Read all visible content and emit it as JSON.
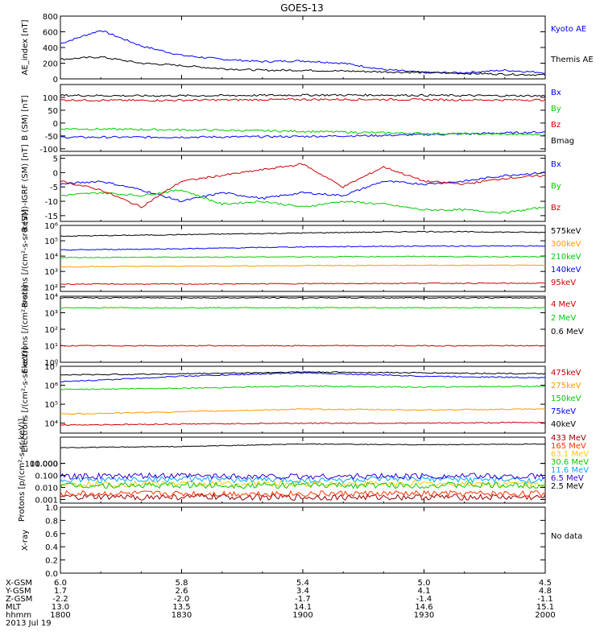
{
  "title": "GOES-13",
  "x_ticks": [
    "1800",
    "1830",
    "1900",
    "1930",
    "2000"
  ],
  "footer": {
    "date": "2013 Jul 19",
    "rows": [
      {
        "label": "X-GSM",
        "values": [
          "6.0",
          "5.8",
          "5.4",
          "5.0",
          "4.5"
        ]
      },
      {
        "label": "Y-GSM",
        "values": [
          "1.7",
          "2.6",
          "3.4",
          "4.1",
          "4.8"
        ]
      },
      {
        "label": "Z-GSM",
        "values": [
          "-2.2",
          "-2.0",
          "-1.7",
          "-1.4",
          "-1.1"
        ]
      },
      {
        "label": "MLT",
        "values": [
          "13.0",
          "13.5",
          "14.1",
          "14.6",
          "15.1"
        ]
      },
      {
        "label": "hhmm",
        "values": [
          "1800",
          "1830",
          "1900",
          "1930",
          "2000"
        ]
      }
    ]
  },
  "chart_data": [
    {
      "type": "line",
      "ylabel": "AE_index [nT]",
      "yscale": "linear",
      "ylim": [
        0,
        800
      ],
      "y_ticks": [
        "0",
        "200",
        "400",
        "600",
        "800"
      ],
      "x": [
        "1800",
        "1810",
        "1820",
        "1830",
        "1840",
        "1850",
        "1900",
        "1910",
        "1920",
        "1930",
        "1940",
        "1950",
        "2000"
      ],
      "series": [
        {
          "name": "Kyoto AE",
          "color": "#0000ff",
          "values": [
            450,
            620,
            420,
            300,
            250,
            220,
            230,
            200,
            120,
            80,
            80,
            110,
            80
          ]
        },
        {
          "name": "Themis AE",
          "color": "#000000",
          "values": [
            250,
            280,
            200,
            170,
            130,
            110,
            110,
            100,
            90,
            80,
            70,
            60,
            50
          ]
        }
      ]
    },
    {
      "type": "line",
      "ylabel": "B (SM) [nT]",
      "yscale": "linear",
      "ylim": [
        -110,
        150
      ],
      "y_ticks": [
        "-100",
        "-50",
        "0",
        "50",
        "100"
      ],
      "x": [
        "1800",
        "1820",
        "1840",
        "1900",
        "1920",
        "1940",
        "2000"
      ],
      "series": [
        {
          "name": "Bx",
          "color": "#0000ff",
          "values": [
            -55,
            -55,
            -54,
            -52,
            -48,
            -42,
            -35
          ]
        },
        {
          "name": "By",
          "color": "#00cc00",
          "values": [
            -22,
            -25,
            -28,
            -32,
            -38,
            -42,
            -45
          ]
        },
        {
          "name": "Bz",
          "color": "#cc0000",
          "values": [
            90,
            88,
            90,
            92,
            92,
            90,
            90
          ]
        },
        {
          "name": "Bmag",
          "color": "#000000",
          "values": [
            108,
            106,
            107,
            109,
            109,
            107,
            106
          ]
        }
      ]
    },
    {
      "type": "line",
      "ylabel": "B (SM)-IGRF (SM) [nT]",
      "yscale": "linear",
      "ylim": [
        -17,
        6
      ],
      "y_ticks": [
        "-15",
        "-10",
        "-5",
        "0",
        "5"
      ],
      "x": [
        "1800",
        "1810",
        "1820",
        "1830",
        "1840",
        "1850",
        "1900",
        "1910",
        "1920",
        "1930",
        "1940",
        "1950",
        "2000"
      ],
      "series": [
        {
          "name": "Bx",
          "color": "#0000ff",
          "values": [
            -4,
            -3,
            -6,
            -10,
            -7,
            -9,
            -7,
            -8,
            -3,
            -4,
            -3,
            -1,
            0
          ]
        },
        {
          "name": "By",
          "color": "#00cc00",
          "values": [
            -8,
            -7,
            -8,
            -6,
            -11,
            -10,
            -12,
            -10,
            -11,
            -13,
            -13,
            -14,
            -12
          ]
        },
        {
          "name": "Bz",
          "color": "#cc0000",
          "values": [
            -3,
            -6,
            -12,
            -3,
            -1,
            1,
            3,
            -5,
            2,
            -3,
            -4,
            -2,
            -1
          ]
        }
      ]
    },
    {
      "type": "line",
      "ylabel": "Protons [/(cm²-s-sr-keV)]",
      "yscale": "log",
      "ylim": [
        50,
        1000000
      ],
      "y_ticks": [
        "10²",
        "10³",
        "10⁴",
        "10⁵",
        "10⁶"
      ],
      "x": [
        "1800",
        "1830",
        "1900",
        "1930",
        "2000"
      ],
      "series": [
        {
          "name": "575keV",
          "color": "#000000",
          "values": [
            200000,
            250000,
            320000,
            400000,
            350000
          ]
        },
        {
          "name": "300keV",
          "color": "#ff9900",
          "values": [
            2000,
            2200,
            2400,
            2500,
            2500
          ]
        },
        {
          "name": "210keV",
          "color": "#00cc00",
          "values": [
            8000,
            8500,
            9000,
            9500,
            9000
          ]
        },
        {
          "name": "140keV",
          "color": "#0000ff",
          "values": [
            25000,
            30000,
            40000,
            45000,
            45000
          ]
        },
        {
          "name": "95keV",
          "color": "#cc0000",
          "values": [
            150,
            150,
            160,
            170,
            170
          ]
        }
      ]
    },
    {
      "type": "line",
      "ylabel": "Electrons [/(cm²-s-sr)]",
      "yscale": "log",
      "ylim": [
        1,
        10000
      ],
      "y_ticks": [
        "10⁰",
        "10¹",
        "10²",
        "10³",
        "10⁴"
      ],
      "x": [
        "1800",
        "1830",
        "1900",
        "1930",
        "2000"
      ],
      "series": [
        {
          "name": "4 MeV",
          "color": "#cc0000",
          "values": [
            10,
            10,
            10,
            10,
            10
          ]
        },
        {
          "name": "2 MeV",
          "color": "#00cc00",
          "values": [
            2000,
            2000,
            2000,
            2000,
            2000
          ]
        },
        {
          "name": "0.6 MeV",
          "color": "#000000",
          "values": [
            8000,
            8000,
            8000,
            8000,
            8000
          ]
        }
      ]
    },
    {
      "type": "line",
      "ylabel": "Electrons [/(cm²-s-sr-keV)]",
      "yscale": "log",
      "ylim": [
        3000,
        10000000
      ],
      "y_ticks": [
        "10⁴",
        "10⁵",
        "10⁶",
        "10⁷"
      ],
      "x": [
        "1800",
        "1830",
        "1900",
        "1930",
        "2000"
      ],
      "series": [
        {
          "name": "475keV",
          "color": "#cc0000",
          "values": [
            8000,
            9000,
            10000,
            10000,
            11000
          ]
        },
        {
          "name": "275keV",
          "color": "#ff9900",
          "values": [
            30000,
            40000,
            55000,
            50000,
            55000
          ]
        },
        {
          "name": "150keV",
          "color": "#00cc00",
          "values": [
            600000,
            700000,
            900000,
            800000,
            900000
          ]
        },
        {
          "name": "75keV",
          "color": "#0000ff",
          "values": [
            1500000,
            3000000,
            4500000,
            3000000,
            2500000
          ]
        },
        {
          "name": "40keV",
          "color": "#000000",
          "values": [
            3500000,
            4000000,
            5000000,
            4500000,
            4000000
          ]
        }
      ]
    },
    {
      "type": "line",
      "ylabel": "Protons [p/(cm²-s-sr-keV)]",
      "yscale": "log",
      "ylim": [
        0.0005,
        150
      ],
      "y_ticks": [
        "0.001",
        "0.010",
        "0.100",
        "1.000",
        "10.000",
        "100.000"
      ],
      "x": [
        "1800",
        "1830",
        "1900",
        "1930",
        "2000"
      ],
      "series": [
        {
          "name": "433 MeV",
          "color": "#990000",
          "values": [
            0.0015,
            0.0016,
            0.0015,
            0.0016,
            0.0015
          ]
        },
        {
          "name": "165 MeV",
          "color": "#ff3300",
          "values": [
            0.003,
            0.003,
            0.003,
            0.003,
            0.003
          ]
        },
        {
          "name": "63.1 MeV",
          "color": "#ffcc00",
          "values": [
            0.02,
            0.02,
            0.02,
            0.02,
            0.02
          ]
        },
        {
          "name": "30.6 MeV",
          "color": "#00cc00",
          "values": [
            0.015,
            0.015,
            0.015,
            0.015,
            0.015
          ]
        },
        {
          "name": "11.6 MeV",
          "color": "#00aaff",
          "values": [
            0.04,
            0.05,
            0.04,
            0.05,
            0.04
          ]
        },
        {
          "name": "6.5 MeV",
          "color": "#3300cc",
          "values": [
            0.08,
            0.09,
            0.08,
            0.09,
            0.08
          ]
        },
        {
          "name": "2.5 MeV",
          "color": "#000000",
          "values": [
            20,
            25,
            40,
            35,
            40
          ]
        }
      ]
    },
    {
      "type": "line",
      "ylabel": "X-ray",
      "yscale": "linear",
      "ylim": [
        0,
        1
      ],
      "y_ticks": [
        "0.0",
        "0.2",
        "0.4",
        "0.6",
        "0.8",
        "1.0"
      ],
      "x": [],
      "series": [],
      "note": "No data"
    }
  ]
}
